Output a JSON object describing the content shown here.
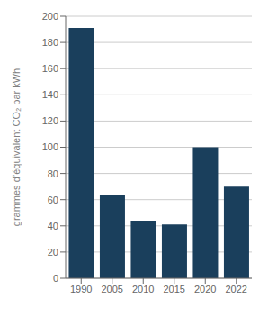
{
  "chart_data": {
    "type": "bar",
    "categories": [
      "1990",
      "2005",
      "2010",
      "2015",
      "2020",
      "2022"
    ],
    "values": [
      191,
      64,
      44,
      41,
      100,
      70
    ],
    "color": "#1a3f5c",
    "ylabel": "grammes d’équivalent CO₂ par kWh",
    "ylim": [
      0,
      200
    ],
    "yticks": [
      0,
      20,
      40,
      60,
      80,
      100,
      120,
      140,
      160,
      180,
      200
    ],
    "grid": true
  }
}
